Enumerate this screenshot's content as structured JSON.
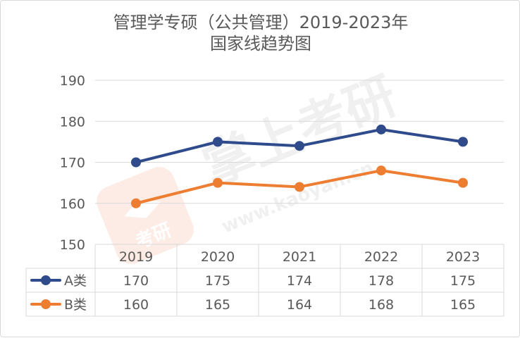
{
  "chart_data": {
    "type": "line",
    "title_lines": [
      "管理学专硕（公共管理）2019-2023年",
      "国家线趋势图"
    ],
    "categories": [
      "2019",
      "2020",
      "2021",
      "2022",
      "2023"
    ],
    "series": [
      {
        "name": "A类",
        "values": [
          170,
          175,
          174,
          178,
          175
        ],
        "color": "#2f4b8c"
      },
      {
        "name": "B类",
        "values": [
          160,
          165,
          164,
          168,
          165
        ],
        "color": "#ed7d31"
      }
    ],
    "ylim": [
      150,
      190
    ],
    "yticks": [
      150,
      160,
      170,
      180,
      190
    ],
    "grid": true,
    "legend": "data-table-left",
    "data_table": true
  },
  "watermark": {
    "text": "掌上考研",
    "url": "www.kaoyan.cn",
    "logo_text": "考研"
  }
}
